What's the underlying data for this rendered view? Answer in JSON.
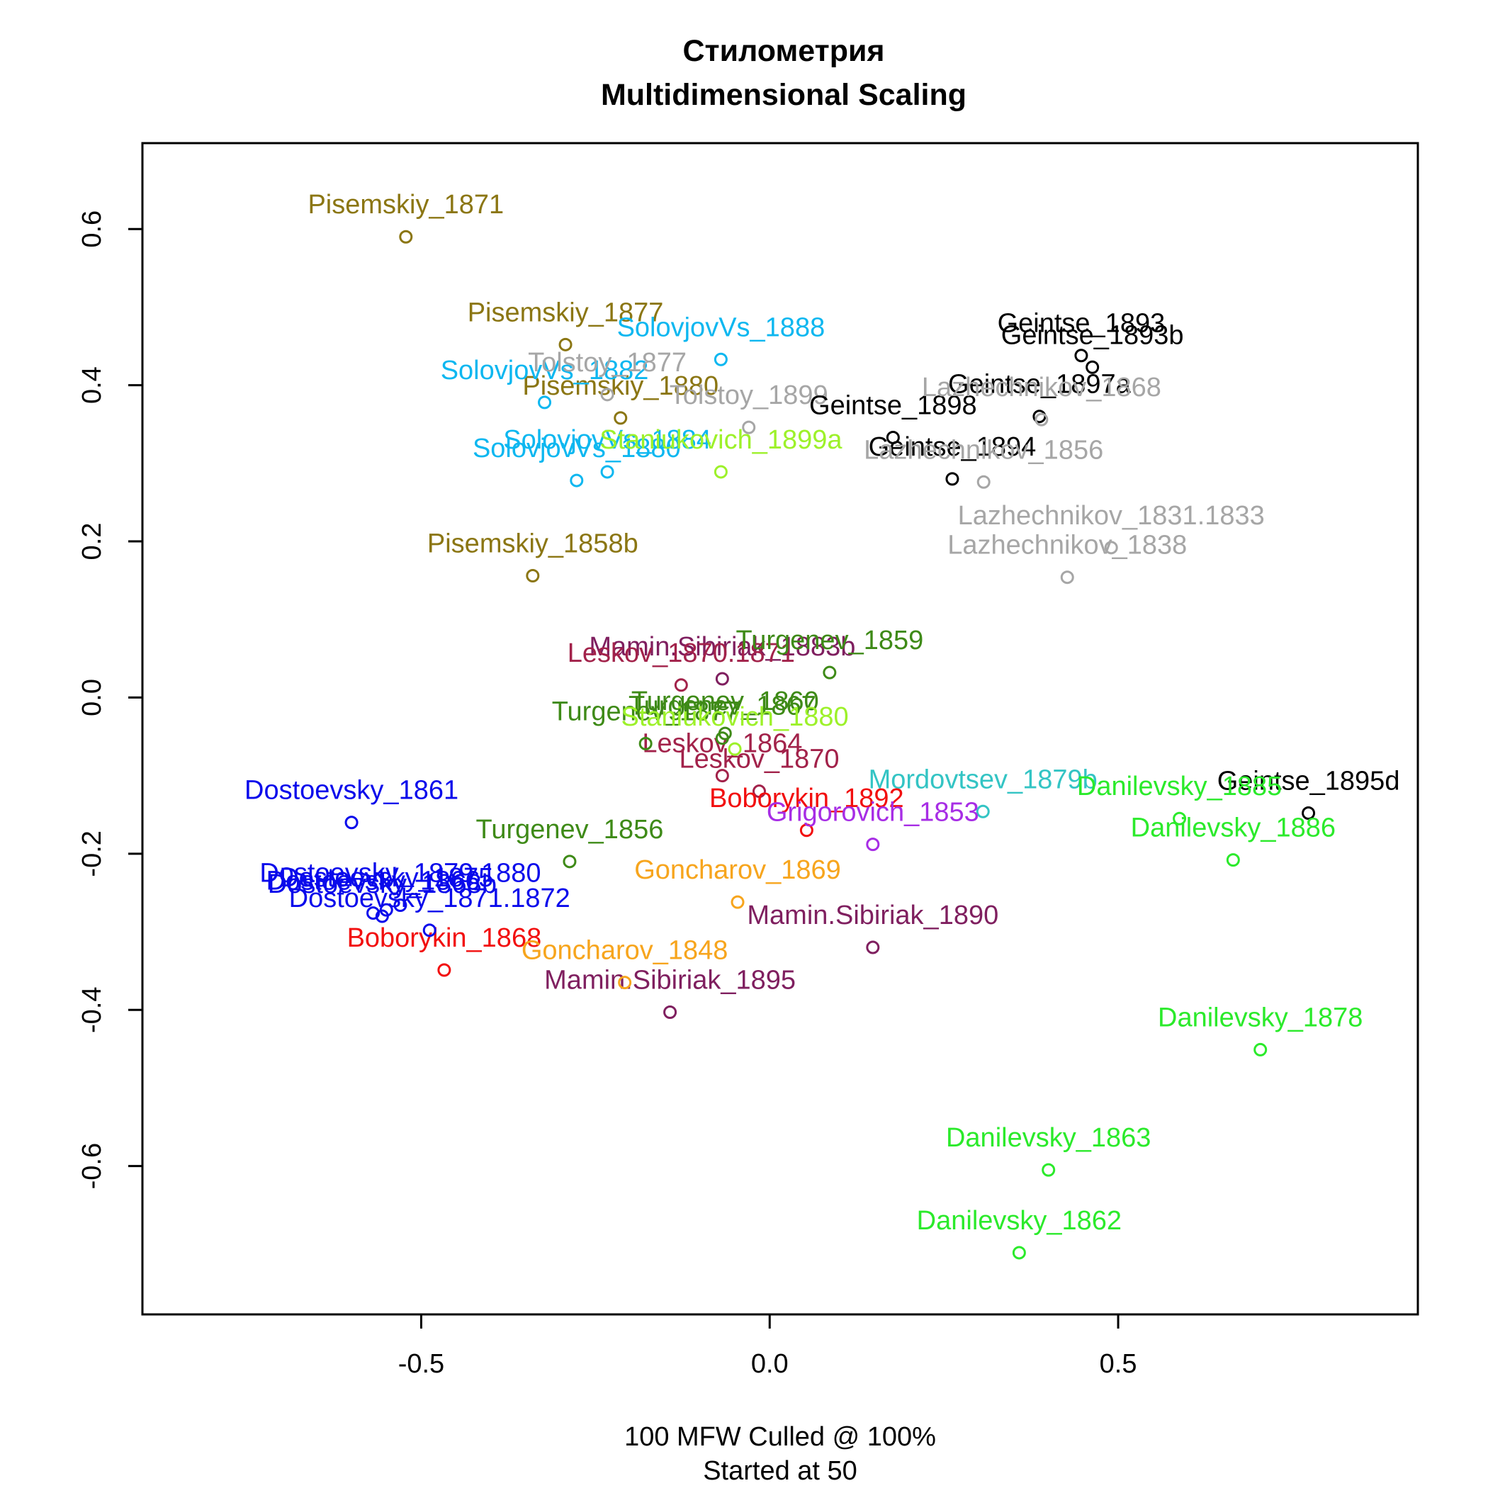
{
  "chart_data": {
    "type": "scatter",
    "title": "Стилометрия",
    "subtitle": "Multidimensional Scaling",
    "xlabel_line1": "100 MFW  Culled @ 100%",
    "xlabel_line2": "Started at 50",
    "xlim": [
      -0.9,
      0.93
    ],
    "ylim": [
      -0.79,
      0.71
    ],
    "xticks": [
      -0.5,
      0.0,
      0.5
    ],
    "xtick_labels": [
      "-0.5",
      "0.0",
      "0.5"
    ],
    "yticks": [
      -0.6,
      -0.4,
      -0.2,
      0.0,
      0.2,
      0.4,
      0.6
    ],
    "ytick_labels": [
      "-0.6",
      "-0.4",
      "-0.2",
      "0.0",
      "0.2",
      "0.4",
      "0.6"
    ],
    "grid": false,
    "points": [
      {
        "label": "Pisemskiy_1871",
        "x": -0.522,
        "y": 0.59,
        "color": "#8B7613"
      },
      {
        "label": "Pisemskiy_1877",
        "x": -0.293,
        "y": 0.452,
        "color": "#8B7613"
      },
      {
        "label": "Pisemskiy_1880",
        "x": -0.214,
        "y": 0.358,
        "color": "#8B7613"
      },
      {
        "label": "Pisemskiy_1858b",
        "x": -0.34,
        "y": 0.156,
        "color": "#8B7613"
      },
      {
        "label": "SolovjovVs_1888",
        "x": -0.07,
        "y": 0.433,
        "color": "#0DB7F0"
      },
      {
        "label": "SolovjovVs_1882",
        "x": -0.323,
        "y": 0.378,
        "color": "#0DB7F0"
      },
      {
        "label": "SolovjovVs_1884",
        "x": -0.233,
        "y": 0.289,
        "color": "#0DB7F0"
      },
      {
        "label": "SolovjovVs_1880",
        "x": -0.277,
        "y": 0.278,
        "color": "#0DB7F0"
      },
      {
        "label": "Tolstoy_1877",
        "x": -0.233,
        "y": 0.388,
        "color": "#A6A6A6"
      },
      {
        "label": "Tolstoy_1899",
        "x": -0.03,
        "y": 0.346,
        "color": "#A6A6A6"
      },
      {
        "label": "Staniukovich_1899a",
        "x": -0.07,
        "y": 0.289,
        "color": "#9DF12A"
      },
      {
        "label": "Geintse_1893",
        "x": 0.447,
        "y": 0.438,
        "color": "#000000"
      },
      {
        "label": "Geintse_1893b",
        "x": 0.463,
        "y": 0.423,
        "color": "#000000"
      },
      {
        "label": "Geintse_1897a",
        "x": 0.387,
        "y": 0.36,
        "color": "#000000"
      },
      {
        "label": "Geintse_1898",
        "x": 0.177,
        "y": 0.333,
        "color": "#000000"
      },
      {
        "label": "Geintse_1894",
        "x": 0.262,
        "y": 0.28,
        "color": "#000000"
      },
      {
        "label": "Geintse_1895d",
        "x": 0.773,
        "y": -0.148,
        "color": "#000000"
      },
      {
        "label": "Lazhechnikov_1868",
        "x": 0.39,
        "y": 0.356,
        "color": "#A6A6A6"
      },
      {
        "label": "Lazhechnikov_1856",
        "x": 0.307,
        "y": 0.276,
        "color": "#A6A6A6"
      },
      {
        "label": "Lazhechnikov_1831.1833",
        "x": 0.49,
        "y": 0.192,
        "color": "#A6A6A6"
      },
      {
        "label": "Lazhechnikov_1838",
        "x": 0.427,
        "y": 0.154,
        "color": "#A6A6A6"
      },
      {
        "label": "Mamin.Sibiriak_1883b",
        "x": -0.068,
        "y": 0.024,
        "color": "#7F1F5F"
      },
      {
        "label": "Mamin.Sibiriak_1890",
        "x": 0.148,
        "y": -0.32,
        "color": "#7F1F5F"
      },
      {
        "label": "Mamin.Sibiriak_1895",
        "x": -0.143,
        "y": -0.403,
        "color": "#7F1F5F"
      },
      {
        "label": "Leskov_1870.1871",
        "x": -0.127,
        "y": 0.016,
        "color": "#A2224A"
      },
      {
        "label": "Leskov_1864",
        "x": -0.068,
        "y": -0.1,
        "color": "#A2224A"
      },
      {
        "label": "Leskov_1870",
        "x": -0.015,
        "y": -0.12,
        "color": "#A2224A"
      },
      {
        "label": "Turgenev_1859",
        "x": 0.086,
        "y": 0.032,
        "color": "#3E8A17"
      },
      {
        "label": "Turgenev_1860",
        "x": -0.064,
        "y": -0.046,
        "color": "#3E8A17"
      },
      {
        "label": "Turgenev_1877",
        "x": -0.178,
        "y": -0.059,
        "color": "#3E8A17"
      },
      {
        "label": "Turgenev_1867",
        "x": -0.068,
        "y": -0.052,
        "color": "#3E8A17"
      },
      {
        "label": "Turgenev_1856",
        "x": -0.287,
        "y": -0.21,
        "color": "#3E8A17"
      },
      {
        "label": "Staniukovich_1880",
        "x": -0.05,
        "y": -0.066,
        "color": "#9DF12A"
      },
      {
        "label": "Mordovtsev_1879b",
        "x": 0.306,
        "y": -0.146,
        "color": "#33C4C4"
      },
      {
        "label": "Boborykin_1892",
        "x": 0.053,
        "y": -0.17,
        "color": "#F20E0E"
      },
      {
        "label": "Boborykin_1868",
        "x": -0.467,
        "y": -0.349,
        "color": "#F20E0E"
      },
      {
        "label": "Grigorovich_1853",
        "x": 0.148,
        "y": -0.188,
        "color": "#A72DE5"
      },
      {
        "label": "Goncharov_1869",
        "x": -0.046,
        "y": -0.262,
        "color": "#F7A51D"
      },
      {
        "label": "Goncharov_1848",
        "x": -0.208,
        "y": -0.365,
        "color": "#F7A51D"
      },
      {
        "label": "Dostoevsky_1861",
        "x": -0.6,
        "y": -0.16,
        "color": "#0A0AEB"
      },
      {
        "label": "Dostoevsky_1875",
        "x": -0.55,
        "y": -0.272,
        "color": "#0A0AEB"
      },
      {
        "label": "Dostoevsky_1879.1880",
        "x": -0.53,
        "y": -0.266,
        "color": "#0A0AEB"
      },
      {
        "label": "Dostoevsky_1866",
        "x": -0.569,
        "y": -0.276,
        "color": "#0A0AEB"
      },
      {
        "label": "Dostoevsky_1868b",
        "x": -0.556,
        "y": -0.28,
        "color": "#0A0AEB"
      },
      {
        "label": "Dostoevsky_1871.1872",
        "x": -0.488,
        "y": -0.298,
        "color": "#0A0AEB"
      },
      {
        "label": "Danilevsky_1885",
        "x": 0.588,
        "y": -0.155,
        "color": "#2BEA2B"
      },
      {
        "label": "Danilevsky_1886",
        "x": 0.665,
        "y": -0.208,
        "color": "#2BEA2B"
      },
      {
        "label": "Danilevsky_1878",
        "x": 0.704,
        "y": -0.451,
        "color": "#2BEA2B"
      },
      {
        "label": "Danilevsky_1863",
        "x": 0.4,
        "y": -0.605,
        "color": "#2BEA2B"
      },
      {
        "label": "Danilevsky_1862",
        "x": 0.358,
        "y": -0.711,
        "color": "#2BEA2B"
      }
    ]
  }
}
